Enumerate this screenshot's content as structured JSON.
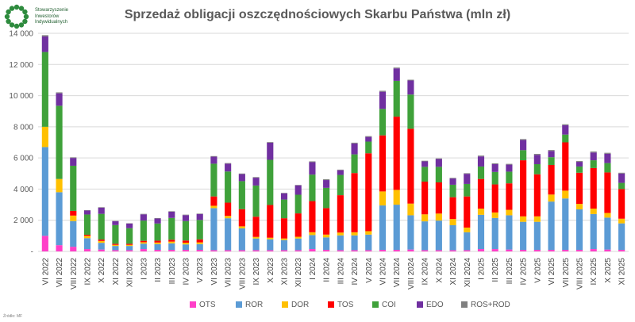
{
  "logo": {
    "line1": "Stowarzyszenie",
    "line2": "Inwestorów",
    "line3": "Indywidualnych"
  },
  "source_note": "Źródło: MF",
  "colors": {
    "OTS": "#ff3fc8",
    "ROR": "#5b9bd5",
    "DOR": "#ffc000",
    "TOS": "#ff0000",
    "COI": "#3fa13a",
    "EDO": "#7030a0",
    "ROS+ROD": "#808080",
    "logo_green": "#2e8b3e"
  },
  "chart_data": {
    "type": "bar",
    "stacked": true,
    "title": "Sprzedaż obligacji oszczędnościowych Skarbu Państwa (mln zł)",
    "ylim": [
      0,
      14000
    ],
    "yticks": [
      {
        "value": 0,
        "label": "-"
      },
      {
        "value": 2000,
        "label": "2 000"
      },
      {
        "value": 4000,
        "label": "4 000"
      },
      {
        "value": 6000,
        "label": "6 000"
      },
      {
        "value": 8000,
        "label": "8 000"
      },
      {
        "value": 10000,
        "label": "10 000"
      },
      {
        "value": 12000,
        "label": "12 000"
      },
      {
        "value": 14000,
        "label": "14 000"
      }
    ],
    "legend_position": "bottom",
    "categories": [
      "VI 2022",
      "VII 2022",
      "VIII 2022",
      "IX 2022",
      "X 2022",
      "XI 2022",
      "XII 2022",
      "I 2023",
      "II 2023",
      "III 2023",
      "IV 2023",
      "V 2023",
      "VI 2023",
      "VII 2023",
      "VIII 2023",
      "IX 2023",
      "X 2023",
      "XI 2023",
      "XII 2023",
      "I 2024",
      "II 2024",
      "III 2024",
      "IV 2024",
      "V 2024",
      "VI 2024",
      "VII 2024",
      "VIII 2024",
      "IX 2024",
      "X 2024",
      "XI 2024",
      "XII 2024",
      "I 2025",
      "II 2025",
      "III 2025",
      "IV 2025",
      "V 2025",
      "VI 2025",
      "VII 2025",
      "VIII 2025",
      "IX 2025",
      "X 2025",
      "XI 2025"
    ],
    "series": [
      {
        "name": "OTS",
        "values": [
          1000,
          400,
          300,
          150,
          120,
          80,
          80,
          150,
          100,
          100,
          100,
          100,
          80,
          80,
          80,
          80,
          80,
          80,
          80,
          150,
          100,
          80,
          80,
          80,
          100,
          100,
          120,
          80,
          80,
          80,
          80,
          150,
          150,
          120,
          100,
          100,
          100,
          100,
          100,
          150,
          120,
          100
        ]
      },
      {
        "name": "ROR",
        "values": [
          5700,
          3400,
          1650,
          700,
          430,
          270,
          270,
          350,
          370,
          420,
          350,
          370,
          2700,
          2050,
          1400,
          750,
          700,
          650,
          750,
          900,
          800,
          950,
          950,
          1000,
          2850,
          2900,
          2200,
          1850,
          1900,
          1600,
          1150,
          2200,
          2000,
          2200,
          1800,
          1800,
          3100,
          3300,
          2600,
          2250,
          2050,
          1700
        ]
      },
      {
        "name": "DOR",
        "values": [
          1300,
          850,
          350,
          150,
          120,
          70,
          70,
          90,
          100,
          110,
          110,
          110,
          150,
          150,
          130,
          100,
          100,
          100,
          110,
          180,
          180,
          180,
          200,
          220,
          900,
          950,
          750,
          450,
          450,
          400,
          300,
          400,
          350,
          350,
          350,
          350,
          450,
          500,
          350,
          350,
          300,
          300
        ]
      },
      {
        "name": "TOS",
        "values": [
          0,
          0,
          300,
          70,
          90,
          70,
          70,
          90,
          120,
          120,
          140,
          190,
          600,
          850,
          1100,
          1300,
          2100,
          1300,
          1500,
          2000,
          1700,
          2400,
          3800,
          5000,
          3600,
          4700,
          4800,
          2100,
          2000,
          1400,
          2000,
          1900,
          1800,
          1700,
          3600,
          2700,
          1900,
          3100,
          2000,
          2600,
          2600,
          1900
        ]
      },
      {
        "name": "COI",
        "values": [
          4800,
          4700,
          2900,
          1300,
          1650,
          1200,
          1000,
          1300,
          1100,
          1400,
          1250,
          1250,
          2100,
          2000,
          1800,
          2000,
          2900,
          1200,
          1200,
          1700,
          1300,
          1300,
          1200,
          750,
          1700,
          2300,
          2200,
          950,
          1000,
          800,
          800,
          800,
          800,
          750,
          650,
          650,
          500,
          500,
          400,
          500,
          600,
          400
        ]
      },
      {
        "name": "EDO",
        "values": [
          1000,
          800,
          500,
          250,
          400,
          250,
          300,
          400,
          320,
          400,
          380,
          380,
          450,
          500,
          450,
          500,
          1100,
          400,
          600,
          800,
          500,
          300,
          700,
          300,
          1100,
          800,
          900,
          350,
          500,
          400,
          650,
          650,
          500,
          450,
          650,
          600,
          400,
          600,
          300,
          500,
          600,
          600
        ]
      },
      {
        "name": "ROS+ROD",
        "values": [
          80,
          60,
          40,
          30,
          30,
          20,
          20,
          30,
          30,
          30,
          30,
          30,
          40,
          40,
          40,
          40,
          40,
          30,
          30,
          50,
          50,
          40,
          50,
          50,
          60,
          50,
          50,
          40,
          40,
          40,
          40,
          50,
          50,
          50,
          60,
          60,
          60,
          60,
          50,
          60,
          60,
          50
        ]
      }
    ]
  }
}
